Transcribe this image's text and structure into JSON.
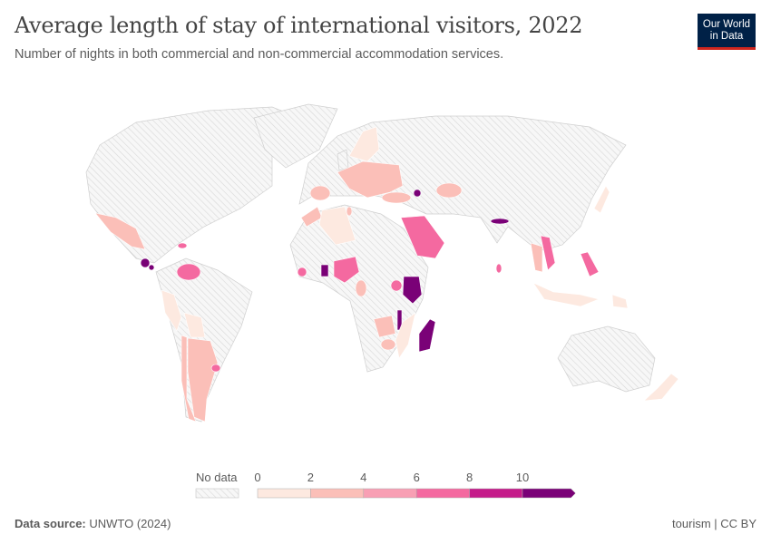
{
  "title": "Average length of stay of international visitors, 2022",
  "subtitle": "Number of nights in both commercial and non-commercial accommodation services.",
  "logo": {
    "line1": "Our World",
    "line2": "in Data"
  },
  "legend": {
    "no_data_label": "No data",
    "ticks": [
      "0",
      "2",
      "4",
      "6",
      "8",
      "10"
    ],
    "bins": [
      "0-2",
      "2-4",
      "4-6",
      "6-8",
      "8-10",
      ">10"
    ],
    "colors": [
      "#fde9e0",
      "#fbbfb8",
      "#f89fb4",
      "#f469a0",
      "#c51b8a",
      "#7a0177"
    ],
    "no_data_color": "#e9e9e9"
  },
  "countries": {
    "Mexico": 1,
    "Guatemala": 5,
    "El Salvador": 5,
    "Dominican Republic": 3,
    "Venezuela": 3,
    "Peru": 0,
    "Bolivia": 0,
    "Argentina": 1,
    "Uruguay": 3,
    "Chile": 1,
    "Europe": 1,
    "Spain": 1,
    "Norway/Sweden/Finland": 0,
    "Turkey": 1,
    "Kazakhstan": 1,
    "Armenia": 5,
    "Algeria": 0,
    "Morocco": 1,
    "Saudi Arabia": 3,
    "Nigeria": 3,
    "Ghana": 5,
    "Ivory Coast": 3,
    "Kenya": 5,
    "Uganda": 3,
    "Zambia": 1,
    "Malawi": 5,
    "Mozambique": 0,
    "Madagascar": 5,
    "Zimbabwe": 1,
    "Nepal": 5,
    "Sri Lanka": 3,
    "Thailand": 1,
    "Vietnam": 3,
    "Philippines": 3,
    "Indonesia": 0,
    "Japan": 0,
    "Papua New Guinea": 0,
    "New Zealand": 0,
    "Cameroon": 1,
    "Tunisia": 1
  },
  "footer": {
    "source_label": "Data source:",
    "source": "UNWTO (2024)",
    "right": "tourism | CC BY"
  }
}
